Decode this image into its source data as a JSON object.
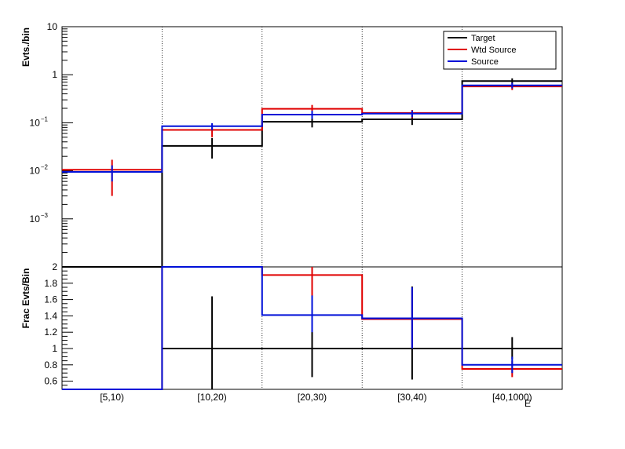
{
  "chart_data": [
    {
      "type": "line",
      "panel": "top",
      "ylabel": "Evts./bin",
      "yscale": "log",
      "ylim": [
        0.0001,
        10
      ],
      "ytick_labels": [
        {
          "value": 10,
          "label": "10"
        },
        {
          "value": 1,
          "label": "1"
        },
        {
          "value": 0.1,
          "label": "10",
          "exp": "−1"
        },
        {
          "value": 0.01,
          "label": "10",
          "exp": "−2"
        },
        {
          "value": 0.001,
          "label": "10",
          "exp": "−3"
        }
      ],
      "categories": [
        "[5,10)",
        "[10,20)",
        "[20,30)",
        "[30,40)",
        "[40,1000)"
      ],
      "legend": {
        "position": "top-right",
        "entries": [
          "Target",
          "Wtd Source",
          "Source"
        ]
      },
      "series": [
        {
          "name": "Target",
          "color": "#000000",
          "values": [
            1e-07,
            0.033,
            0.105,
            0.118,
            0.74
          ],
          "err_lo": [
            null,
            0.018,
            0.08,
            0.09,
            0.65
          ],
          "err_hi": [
            null,
            0.048,
            0.135,
            0.155,
            0.84
          ]
        },
        {
          "name": "Wtd Source",
          "color": "#e00000",
          "values": [
            0.0105,
            0.071,
            0.195,
            0.16,
            0.57
          ],
          "err_lo": [
            0.003,
            0.05,
            0.155,
            0.125,
            0.48
          ],
          "err_hi": [
            0.017,
            0.092,
            0.235,
            0.185,
            0.66
          ]
        },
        {
          "name": "Source",
          "color": "#0010d8",
          "values": [
            0.0095,
            0.085,
            0.148,
            0.155,
            0.6
          ],
          "err_lo": [
            0.006,
            0.07,
            0.12,
            0.13,
            0.52
          ],
          "err_hi": [
            0.013,
            0.098,
            0.178,
            0.18,
            0.68
          ]
        }
      ]
    },
    {
      "type": "line",
      "panel": "bottom",
      "ylabel": "Frac Evts/Bin",
      "xlabel": "E",
      "ylim": [
        0.5,
        2.0
      ],
      "yticks": [
        0.6,
        0.8,
        1,
        1.2,
        1.4,
        1.6,
        1.8,
        2
      ],
      "ytick_labels": [
        "0.6",
        "0.8",
        "1",
        "1.2",
        "1.4",
        "1.6",
        "1.8",
        "2"
      ],
      "categories": [
        "[5,10)",
        "[10,20)",
        "[20,30)",
        "[30,40)",
        "[40,1000)"
      ],
      "series": [
        {
          "name": "Target",
          "color": "#000000",
          "values": [
            null,
            1.0,
            1.0,
            1.0,
            1.0
          ],
          "err_lo": [
            null,
            0.5,
            0.65,
            0.62,
            0.87
          ],
          "err_hi": [
            null,
            1.64,
            1.78,
            1.76,
            1.14
          ]
        },
        {
          "name": "Wtd Source",
          "color": "#e00000",
          "values": [
            0.5,
            2.0,
            1.9,
            1.36,
            0.75
          ],
          "err_lo": [
            null,
            null,
            1.6,
            1.0,
            0.65
          ],
          "err_hi": [
            null,
            null,
            2.0,
            1.72,
            0.85
          ]
        },
        {
          "name": "Source",
          "color": "#0010d8",
          "values": [
            0.5,
            2.0,
            1.41,
            1.37,
            0.8
          ],
          "err_lo": [
            null,
            null,
            1.2,
            1.0,
            0.7
          ],
          "err_hi": [
            null,
            null,
            1.65,
            1.75,
            0.9
          ]
        }
      ]
    }
  ]
}
